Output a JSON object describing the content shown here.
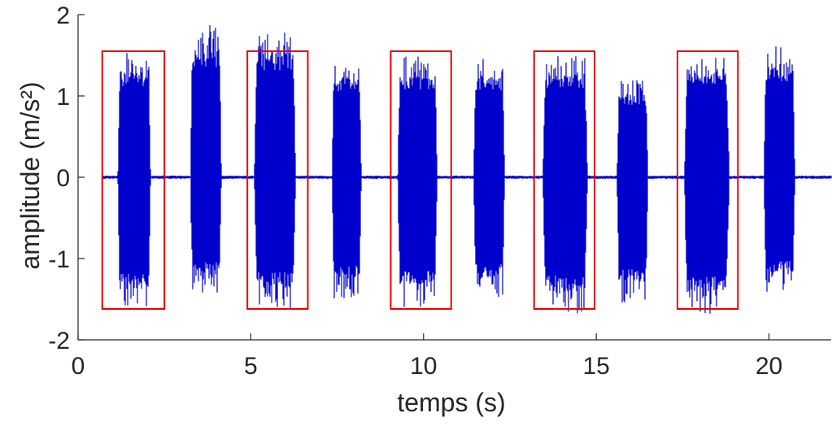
{
  "chart_data": {
    "type": "line",
    "title": "",
    "xlabel": "temps (s)",
    "ylabel": "amplitude (m/s²)",
    "xlim": [
      0,
      21.8
    ],
    "ylim": [
      -2,
      2
    ],
    "xticks": [
      0,
      5,
      10,
      15,
      20
    ],
    "yticks": [
      -2,
      -1,
      0,
      1,
      2
    ],
    "xtick_labels": [
      "0",
      "5",
      "10",
      "15",
      "20"
    ],
    "ytick_labels": [
      "-2",
      "-1",
      "0",
      "1",
      "2"
    ],
    "grid": false,
    "legend": "none",
    "series": [
      {
        "color": "#0000cc",
        "signal_start": 0.7,
        "signal_end": 21.8,
        "baseline_noise_amplitude": 0.02,
        "bursts": [
          {
            "start": 1.15,
            "end": 2.1,
            "max": 1.55,
            "min": -1.65
          },
          {
            "start": 3.25,
            "end": 4.15,
            "max": 1.88,
            "min": -1.45
          },
          {
            "start": 5.1,
            "end": 6.3,
            "max": 1.82,
            "min": -1.62
          },
          {
            "start": 7.35,
            "end": 8.2,
            "max": 1.45,
            "min": -1.5
          },
          {
            "start": 9.25,
            "end": 10.4,
            "max": 1.5,
            "min": -1.6
          },
          {
            "start": 11.45,
            "end": 12.35,
            "max": 1.48,
            "min": -1.48
          },
          {
            "start": 13.45,
            "end": 14.75,
            "max": 1.5,
            "min": -1.68
          },
          {
            "start": 15.6,
            "end": 16.5,
            "max": 1.22,
            "min": -1.55
          },
          {
            "start": 17.55,
            "end": 18.85,
            "max": 1.58,
            "min": -1.68
          },
          {
            "start": 19.85,
            "end": 20.75,
            "max": 1.62,
            "min": -1.42
          }
        ]
      }
    ],
    "annotations": [
      {
        "type": "rect",
        "color": "#ee0000",
        "x0": 0.7,
        "x1": 2.5,
        "y0": -1.62,
        "y1": 1.55
      },
      {
        "type": "rect",
        "color": "#ee0000",
        "x0": 4.9,
        "x1": 6.65,
        "y0": -1.62,
        "y1": 1.55
      },
      {
        "type": "rect",
        "color": "#ee0000",
        "x0": 9.05,
        "x1": 10.8,
        "y0": -1.62,
        "y1": 1.55
      },
      {
        "type": "rect",
        "color": "#ee0000",
        "x0": 13.2,
        "x1": 14.95,
        "y0": -1.62,
        "y1": 1.55
      },
      {
        "type": "rect",
        "color": "#ee0000",
        "x0": 17.35,
        "x1": 19.1,
        "y0": -1.62,
        "y1": 1.55
      }
    ]
  }
}
